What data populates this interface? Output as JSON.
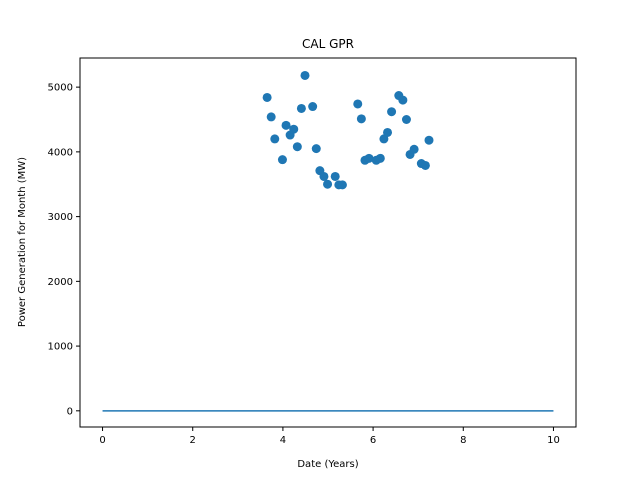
{
  "chart_data": {
    "type": "scatter",
    "title": "CAL GPR",
    "xlabel": "Date (Years)",
    "ylabel": "Power Generation for Month (MW)",
    "xlim": [
      -0.5,
      10.5
    ],
    "ylim": [
      -250,
      5450
    ],
    "xticks": [
      0,
      2,
      4,
      6,
      8,
      10
    ],
    "yticks": [
      0,
      1000,
      2000,
      3000,
      4000,
      5000
    ],
    "grid": false,
    "colors": {
      "points": "#1f77b4",
      "line": "#1f77b4"
    },
    "series": [
      {
        "type": "scatter",
        "x": [
          3.65,
          3.74,
          3.82,
          3.99,
          4.07,
          4.16,
          4.24,
          4.32,
          4.41,
          4.49,
          4.66,
          4.74,
          4.82,
          4.91,
          4.99,
          5.16,
          5.24,
          5.32,
          5.66,
          5.74,
          5.82,
          5.91,
          6.07,
          6.16,
          6.24,
          6.32,
          6.41,
          6.57,
          6.66,
          6.74,
          6.82,
          6.91,
          7.07,
          7.16,
          7.24
        ],
        "y": [
          4840,
          4540,
          4200,
          3880,
          4410,
          4260,
          4350,
          4080,
          4670,
          5180,
          4700,
          4050,
          3710,
          3620,
          3500,
          3620,
          3490,
          3490,
          4740,
          4510,
          3870,
          3900,
          3870,
          3900,
          4200,
          4300,
          4620,
          4870,
          4800,
          4500,
          3960,
          4040,
          3820,
          3790,
          4180
        ]
      },
      {
        "type": "line",
        "x": [
          0,
          10
        ],
        "y": [
          0,
          0
        ]
      }
    ]
  }
}
